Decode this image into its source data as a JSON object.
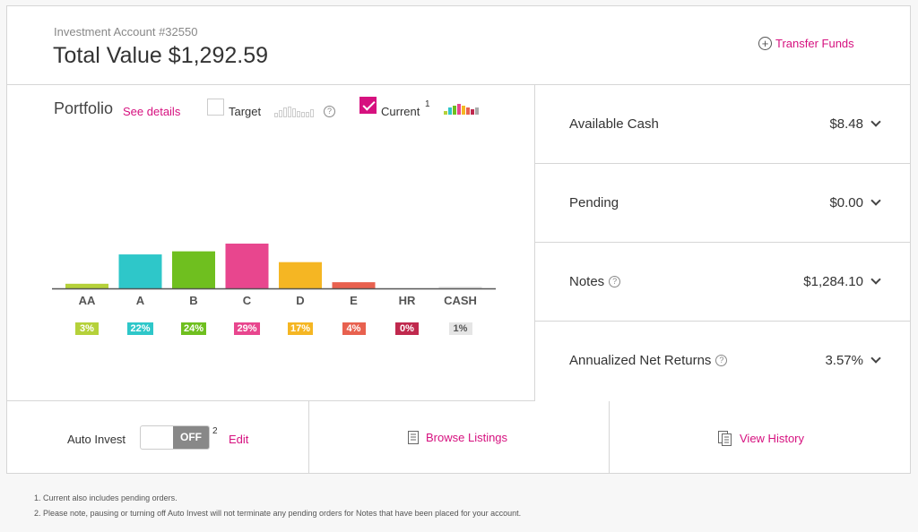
{
  "header": {
    "account": "Investment Account #32550",
    "total": "Total Value $1,292.59",
    "transfer_label": "Transfer Funds"
  },
  "portfolio": {
    "title": "Portfolio",
    "see_details": "See details",
    "target_label": "Target",
    "current_label": "Current",
    "current_sup": "1",
    "current_checked": true,
    "target_checked": false
  },
  "chart_data": {
    "type": "bar",
    "categories": [
      "AA",
      "A",
      "B",
      "C",
      "D",
      "E",
      "HR",
      "CASH"
    ],
    "values": [
      3,
      22,
      24,
      29,
      17,
      4,
      0,
      1
    ],
    "labels": [
      "3%",
      "22%",
      "24%",
      "29%",
      "17%",
      "4%",
      "0%",
      "1%"
    ],
    "colors": [
      "#b5d13a",
      "#2ec7c9",
      "#6fbf1f",
      "#e8468e",
      "#f5b623",
      "#e8614f",
      "#c0294e",
      "#e5e5e5"
    ],
    "label_text_colors": [
      "#fff",
      "#fff",
      "#fff",
      "#fff",
      "#fff",
      "#fff",
      "#fff",
      "#555"
    ]
  },
  "summary": [
    {
      "label": "Available Cash",
      "value": "$8.48",
      "help": false
    },
    {
      "label": "Pending",
      "value": "$0.00",
      "help": false
    },
    {
      "label": "Notes",
      "value": "$1,284.10",
      "help": true
    },
    {
      "label": "Annualized Net Returns",
      "value": "3.57%",
      "help": true
    }
  ],
  "bottom": {
    "auto_invest_label": "Auto Invest",
    "toggle_state": "OFF",
    "auto_sup": "2",
    "edit_label": "Edit",
    "browse_label": "Browse Listings",
    "history_label": "View History"
  },
  "footnotes": [
    "1. Current also includes pending orders.",
    "2. Please note, pausing or turning off Auto Invest will not terminate any pending orders for Notes that have been placed for your account."
  ]
}
